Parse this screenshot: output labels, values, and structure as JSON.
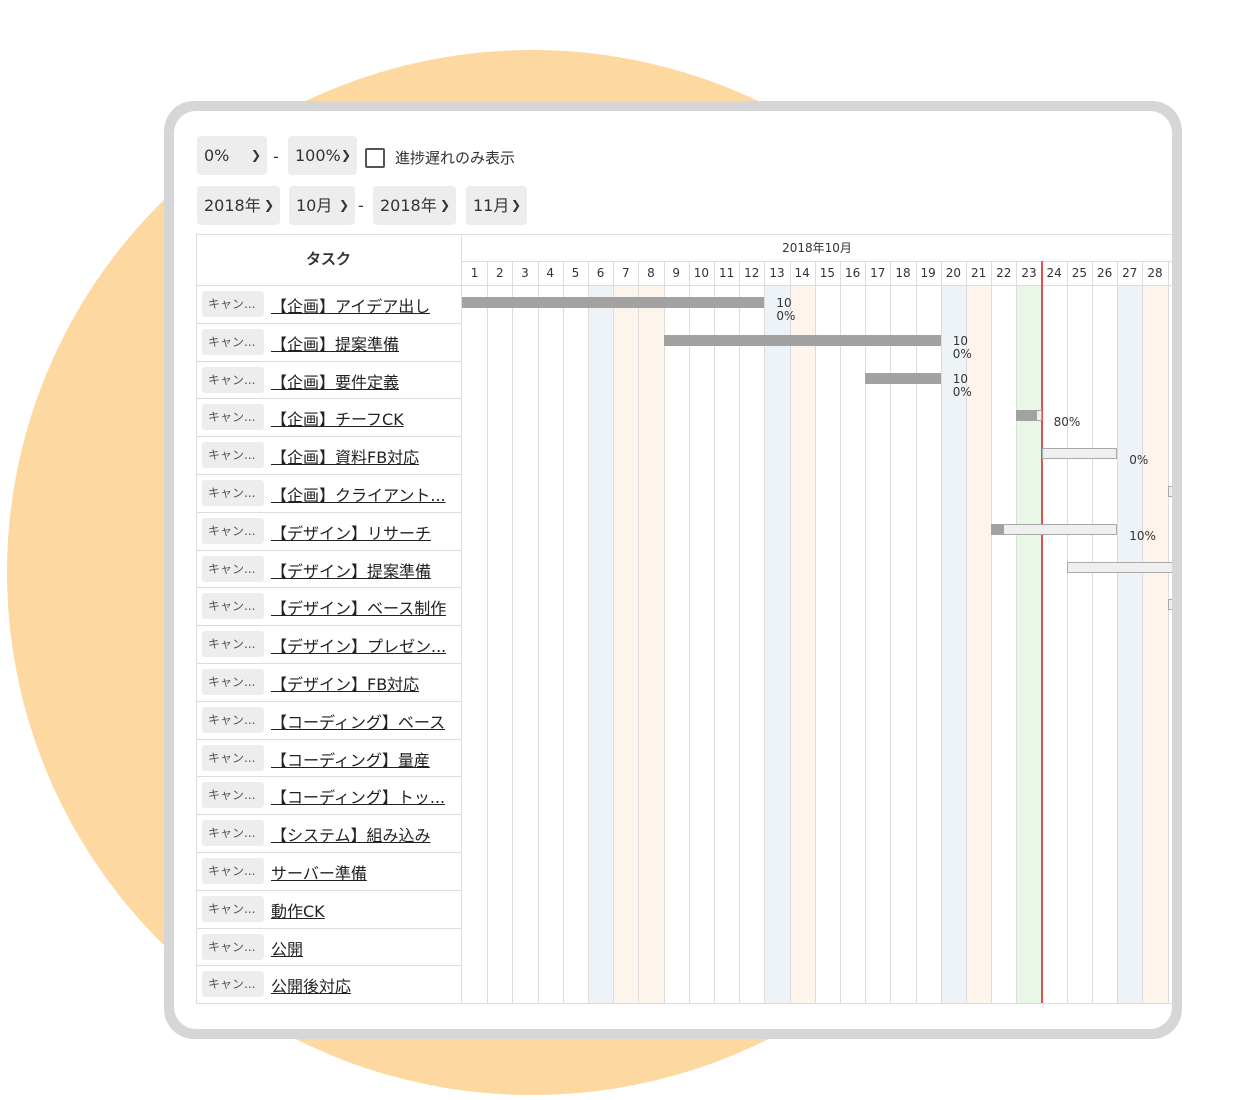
{
  "filters": {
    "progress_from": "0%",
    "progress_to": "100%",
    "range_dash": "-",
    "delayed_only_label": "進捗遅れのみ表示",
    "delayed_only_checked": false,
    "year_from": "2018年",
    "month_from": "10月",
    "year_to": "2018年",
    "month_to": "11月"
  },
  "gantt": {
    "task_header": "タスク",
    "month_label": "2018年10月",
    "days": [
      "1",
      "2",
      "3",
      "4",
      "5",
      "6",
      "7",
      "8",
      "9",
      "10",
      "11",
      "12",
      "13",
      "14",
      "15",
      "16",
      "17",
      "18",
      "19",
      "20",
      "21",
      "22",
      "23",
      "24",
      "25",
      "26",
      "27",
      "28"
    ],
    "saturdays": [
      6,
      13,
      20,
      27
    ],
    "sundays": [
      7,
      14,
      21,
      28
    ],
    "holidays": [
      8
    ],
    "today": 23,
    "colors": {
      "saturday": "#eef3f8",
      "sunday": "#fdf4ec",
      "today_column": "#e9f7e6",
      "today_line": "#e05050",
      "done_bar": "#a2a2a2",
      "todo_bar": "#efefef",
      "background_blob": "#FDD8A0"
    },
    "tasks": [
      {
        "cancel": "キャン...",
        "name": "【企画】アイデア出し",
        "start": 1,
        "end": 12,
        "progress": 1.0,
        "label": [
          "10",
          "0%"
        ]
      },
      {
        "cancel": "キャン...",
        "name": "【企画】提案準備",
        "start": 9,
        "end": 19,
        "progress": 1.0,
        "label": [
          "10",
          "0%"
        ]
      },
      {
        "cancel": "キャン...",
        "name": "【企画】要件定義",
        "start": 17,
        "end": 19,
        "progress": 1.0,
        "label": [
          "10",
          "0%"
        ]
      },
      {
        "cancel": "キャン...",
        "name": "【企画】チーフCK",
        "start": 23,
        "end": 23,
        "progress": 0.8,
        "label": [
          "80%"
        ]
      },
      {
        "cancel": "キャン...",
        "name": "【企画】資料FB対応",
        "start": 24,
        "end": 26,
        "progress": 0.0,
        "label": [
          "0%"
        ]
      },
      {
        "cancel": "キャン...",
        "name": "【企画】クライアント...",
        "start": 29,
        "end": 29,
        "progress": 0.0,
        "label": []
      },
      {
        "cancel": "キャン...",
        "name": "【デザイン】リサーチ",
        "start": 22,
        "end": 26,
        "progress": 0.1,
        "label": [
          "10%"
        ]
      },
      {
        "cancel": "キャン...",
        "name": "【デザイン】提案準備",
        "start": 25,
        "end": 29,
        "progress": 0.0,
        "label": []
      },
      {
        "cancel": "キャン...",
        "name": "【デザイン】ベース制作",
        "start": 29,
        "end": 29,
        "progress": 0.0,
        "label": []
      },
      {
        "cancel": "キャン...",
        "name": "【デザイン】プレゼン...",
        "start": null,
        "end": null,
        "progress": null,
        "label": []
      },
      {
        "cancel": "キャン...",
        "name": "【デザイン】FB対応",
        "start": null,
        "end": null,
        "progress": null,
        "label": []
      },
      {
        "cancel": "キャン...",
        "name": "【コーディング】ベース",
        "start": null,
        "end": null,
        "progress": null,
        "label": []
      },
      {
        "cancel": "キャン...",
        "name": "【コーディング】量産",
        "start": null,
        "end": null,
        "progress": null,
        "label": []
      },
      {
        "cancel": "キャン...",
        "name": "【コーディング】トッ...",
        "start": null,
        "end": null,
        "progress": null,
        "label": []
      },
      {
        "cancel": "キャン...",
        "name": "【システム】組み込み",
        "start": null,
        "end": null,
        "progress": null,
        "label": []
      },
      {
        "cancel": "キャン...",
        "name": "サーバー準備",
        "start": null,
        "end": null,
        "progress": null,
        "label": []
      },
      {
        "cancel": "キャン...",
        "name": "動作CK",
        "start": null,
        "end": null,
        "progress": null,
        "label": []
      },
      {
        "cancel": "キャン...",
        "name": "公開",
        "start": null,
        "end": null,
        "progress": null,
        "label": []
      },
      {
        "cancel": "キャン...",
        "name": "公開後対応",
        "start": null,
        "end": null,
        "progress": null,
        "label": []
      }
    ]
  }
}
